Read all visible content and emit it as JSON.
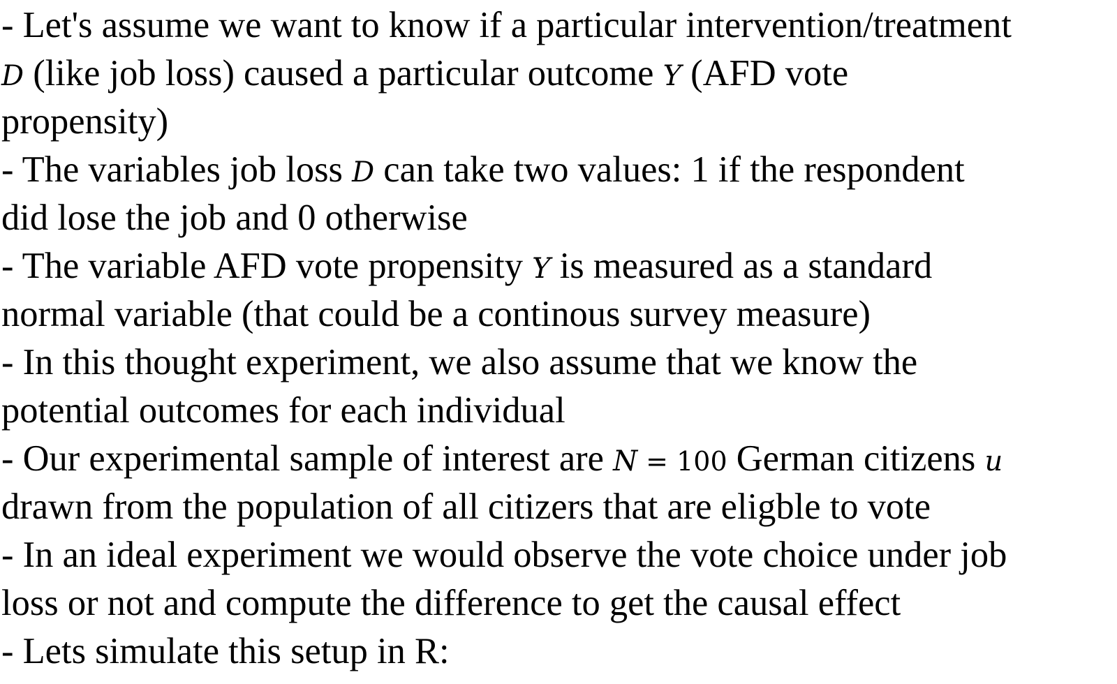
{
  "lines": [
    [
      "- Let's assume we want to know if a particular intervention/treatment"
    ],
    [
      "",
      "D",
      " (like job loss) caused a particular outcome ",
      "Y",
      " (AFD vote"
    ],
    [
      "propensity)"
    ],
    [
      "- The variables job loss ",
      "D",
      " can take two values: 1 if the respondent"
    ],
    [
      "did lose the job and 0 otherwise"
    ],
    [
      "- The variable AFD vote propensity ",
      "Y",
      " is measured as a standard"
    ],
    [
      "normal variable (that could be a continous survey measure)"
    ],
    [
      "- In this thought experiment, we also assume that we know the"
    ],
    [
      "potential outcomes for each individual"
    ],
    [
      "- Our experimental sample of interest are ",
      "N",
      " = ",
      "100",
      " German citizens ",
      "u"
    ],
    [
      "drawn from the population of all citizers that are eligble to vote"
    ],
    [
      "- In an ideal experiment we would observe the vote choice under job"
    ],
    [
      "loss or not and compute the difference to get the causal effect"
    ],
    [
      "- Lets simulate this setup in R:"
    ]
  ]
}
